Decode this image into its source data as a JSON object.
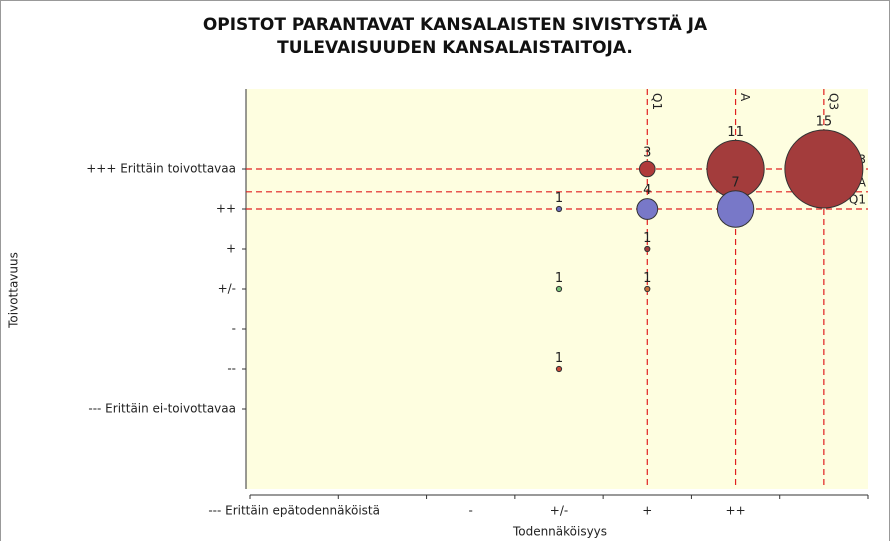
{
  "chart_data": {
    "type": "bubble",
    "title": [
      "OPISTOT PARANTAVAT KANSALAISTEN SIVISTYSTÄ JA",
      "TULEVAISUUDEN KANSALAISTAITOJA."
    ],
    "x_label": "Todennäköisyys",
    "y_label": "Toivottavuus",
    "xlim": [
      -3.5,
      3.5
    ],
    "xticks": [
      {
        "value": -3,
        "label": "--- Erittäin epätodennäköistä"
      },
      {
        "value": -1,
        "label": "-"
      },
      {
        "value": 0,
        "label": "+/-"
      },
      {
        "value": 1,
        "label": "+"
      },
      {
        "value": 2,
        "label": "++"
      }
    ],
    "ylim": [
      -5,
      5
    ],
    "yticks": [
      {
        "value": 3,
        "label": "+++ Erittäin toivottavaa"
      },
      {
        "value": 2,
        "label": "++"
      },
      {
        "value": 1,
        "label": "+"
      },
      {
        "value": 0,
        "label": "+/-"
      },
      {
        "value": -1,
        "label": "-"
      },
      {
        "value": -2,
        "label": "--"
      },
      {
        "value": -3,
        "label": "--- Erittäin ei-toivottavaa"
      }
    ],
    "points": [
      {
        "x": 0,
        "y": 2,
        "size": 1,
        "color": "#6a6ab8"
      },
      {
        "x": 1,
        "y": 3,
        "size": 3,
        "color": "#b03a3a"
      },
      {
        "x": 1,
        "y": 2,
        "size": 4,
        "color": "#7878c8"
      },
      {
        "x": 2,
        "y": 3,
        "size": 11,
        "color": "#a33c3c"
      },
      {
        "x": 2,
        "y": 2,
        "size": 7,
        "color": "#7878c8"
      },
      {
        "x": 3,
        "y": 3,
        "size": 15,
        "color": "#a33c3c"
      },
      {
        "x": 1,
        "y": 1,
        "size": 1,
        "color": "#a33c3c"
      },
      {
        "x": 0,
        "y": 0,
        "size": 1,
        "color": "#7ac27a"
      },
      {
        "x": 1,
        "y": 0,
        "size": 1,
        "color": "#c8703c"
      },
      {
        "x": 0,
        "y": -2,
        "size": 1,
        "color": "#c84a3a"
      }
    ],
    "xlines": [
      {
        "value": 1,
        "label": "Q1"
      },
      {
        "value": 2,
        "label": "A"
      },
      {
        "value": 3,
        "label": "Q3"
      }
    ],
    "ylines": [
      {
        "value": 3,
        "label": "Q3"
      },
      {
        "value": 2.43,
        "label": "A"
      },
      {
        "value": 2,
        "label": "Q1"
      }
    ],
    "line_color": "#e02020",
    "plot_background": "#fefee0"
  }
}
